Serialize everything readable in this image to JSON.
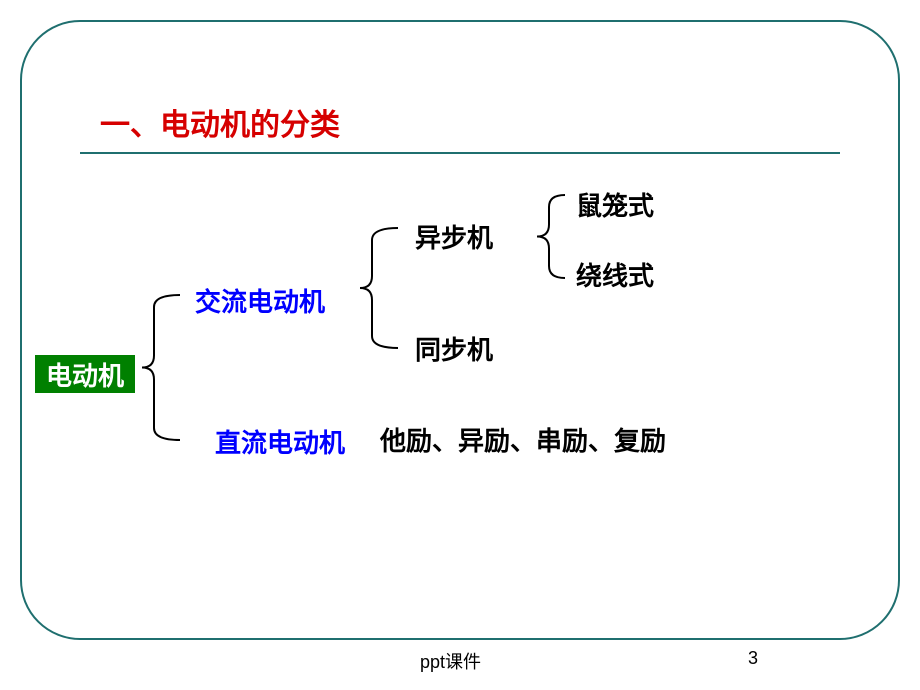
{
  "title": {
    "text": "一、电动机的分类",
    "color": "#d60000",
    "fontsize": 30,
    "underline_color": "#1f6f6f"
  },
  "frame": {
    "border_color": "#1f6f6f",
    "border_width": 2,
    "corner_radius": 60
  },
  "root": {
    "label": "电动机",
    "bg_color": "#008000",
    "text_color": "#ffffff",
    "fontsize": 26
  },
  "level2": {
    "ac": {
      "label": "交流电动机",
      "color": "#0000ff",
      "fontsize": 26
    },
    "dc": {
      "label": "直流电动机",
      "color": "#0000ff",
      "fontsize": 26
    }
  },
  "level3": {
    "async": {
      "label": "异步机",
      "color": "#000000",
      "fontsize": 26
    },
    "sync": {
      "label": "同步机",
      "color": "#000000",
      "fontsize": 26
    },
    "dc_types": {
      "label": "他励、异励、串励、复励",
      "color": "#000000",
      "fontsize": 26
    }
  },
  "level4": {
    "squirrel": {
      "label": "鼠笼式",
      "color": "#000000",
      "fontsize": 26
    },
    "wound": {
      "label": "绕线式",
      "color": "#000000",
      "fontsize": 26
    }
  },
  "braces": {
    "stroke": "#000000",
    "stroke_width": 2
  },
  "footer": {
    "label": "ppt课件",
    "page": "3",
    "color": "#000000",
    "fontsize": 18
  },
  "background_color": "#ffffff"
}
